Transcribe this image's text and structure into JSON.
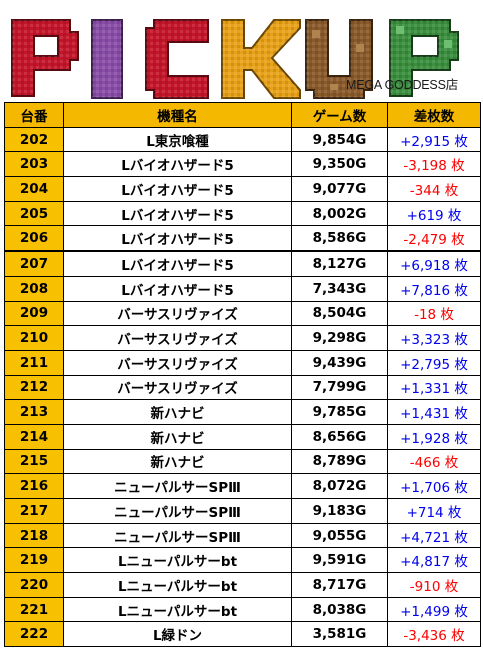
{
  "banner": {
    "title": "PICKUP",
    "store": "MEGA GODDESS店",
    "letter_colors": [
      "#c4162a",
      "#8a4ea8",
      "#c4162a",
      "#e8a21a",
      "#8a5a2b",
      "#3b8f3e"
    ]
  },
  "table": {
    "headers": [
      "台番",
      "機種名",
      "ゲーム数",
      "差枚数"
    ],
    "rows": [
      {
        "no": "202",
        "model": "L東京喰種",
        "games": "9,854G",
        "diff": "+2,915 枚",
        "sign": "pos"
      },
      {
        "no": "203",
        "model": "Lバイオハザード5",
        "games": "9,350G",
        "diff": "-3,198 枚",
        "sign": "neg"
      },
      {
        "no": "204",
        "model": "Lバイオハザード5",
        "games": "9,077G",
        "diff": "-344 枚",
        "sign": "neg"
      },
      {
        "no": "205",
        "model": "Lバイオハザード5",
        "games": "8,002G",
        "diff": "+619 枚",
        "sign": "pos"
      },
      {
        "no": "206",
        "model": "Lバイオハザード5",
        "games": "8,586G",
        "diff": "-2,479 枚",
        "sign": "neg"
      },
      {
        "no": "207",
        "model": "Lバイオハザード5",
        "games": "8,127G",
        "diff": "+6,918 枚",
        "sign": "pos"
      },
      {
        "no": "208",
        "model": "Lバイオハザード5",
        "games": "7,343G",
        "diff": "+7,816 枚",
        "sign": "pos"
      },
      {
        "no": "209",
        "model": "バーサスリヴァイズ",
        "games": "8,504G",
        "diff": "-18 枚",
        "sign": "neg"
      },
      {
        "no": "210",
        "model": "バーサスリヴァイズ",
        "games": "9,298G",
        "diff": "+3,323 枚",
        "sign": "pos"
      },
      {
        "no": "211",
        "model": "バーサスリヴァイズ",
        "games": "9,439G",
        "diff": "+2,795 枚",
        "sign": "pos"
      },
      {
        "no": "212",
        "model": "バーサスリヴァイズ",
        "games": "7,799G",
        "diff": "+1,331 枚",
        "sign": "pos"
      },
      {
        "no": "213",
        "model": "新ハナビ",
        "games": "9,785G",
        "diff": "+1,431 枚",
        "sign": "pos"
      },
      {
        "no": "214",
        "model": "新ハナビ",
        "games": "8,656G",
        "diff": "+1,928 枚",
        "sign": "pos"
      },
      {
        "no": "215",
        "model": "新ハナビ",
        "games": "8,789G",
        "diff": "-466 枚",
        "sign": "neg"
      },
      {
        "no": "216",
        "model": "ニューパルサーSPⅢ",
        "games": "8,072G",
        "diff": "+1,706 枚",
        "sign": "pos"
      },
      {
        "no": "217",
        "model": "ニューパルサーSPⅢ",
        "games": "9,183G",
        "diff": "+714 枚",
        "sign": "pos"
      },
      {
        "no": "218",
        "model": "ニューパルサーSPⅢ",
        "games": "9,055G",
        "diff": "+4,721 枚",
        "sign": "pos"
      },
      {
        "no": "219",
        "model": "Lニューパルサーbt",
        "games": "9,591G",
        "diff": "+4,817 枚",
        "sign": "pos"
      },
      {
        "no": "220",
        "model": "Lニューパルサーbt",
        "games": "8,717G",
        "diff": "-910 枚",
        "sign": "neg"
      },
      {
        "no": "221",
        "model": "Lニューパルサーbt",
        "games": "8,038G",
        "diff": "+1,499 枚",
        "sign": "pos"
      },
      {
        "no": "222",
        "model": "L緑ドン",
        "games": "3,581G",
        "diff": "-3,436 枚",
        "sign": "neg"
      }
    ]
  }
}
